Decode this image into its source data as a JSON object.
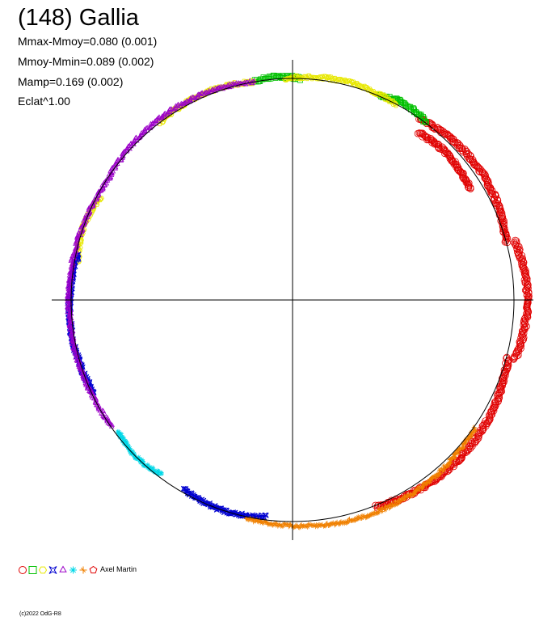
{
  "title": "(148) Gallia",
  "stats": [
    "Mmax-Mmoy=0.080 (0.001)",
    "Mmoy-Mmin=0.089 (0.002)",
    "Mamp=0.169 (0.002)",
    "Eclat^1.00"
  ],
  "observer": "Axel Martin",
  "copyright": "(c)2022 OdG-R8",
  "chart_data": {
    "type": "scatter",
    "projection": "polar lightcurve, radius = brightness ^ 1.00",
    "reference_circle": true,
    "axes_crosshair": true,
    "series": [
      {
        "marker": "circle",
        "color": "#e00000",
        "arcs": [
          [
            292,
            345,
            [
              0.975,
              1.04
            ]
          ],
          [
            345,
            375,
            [
              1.02,
              1.06
            ]
          ],
          [
            375,
            415,
            [
              0.97,
              1.03
            ]
          ],
          [
            32,
            53,
            [
              0.93,
              0.96
            ]
          ]
        ]
      },
      {
        "marker": "square",
        "color": "#00c000",
        "arcs": [
          [
            53,
            67,
            [
              0.985,
              1.02
            ]
          ],
          [
            88,
            100,
            [
              0.99,
              1.01
            ]
          ]
        ]
      },
      {
        "marker": "hexagon",
        "color": "#e8e800",
        "arcs": [
          [
            62,
            92,
            [
              0.985,
              1.015
            ]
          ],
          [
            100,
            127,
            [
              0.985,
              1.015
            ]
          ],
          [
            152,
            170,
            [
              0.97,
              1.0
            ]
          ]
        ]
      },
      {
        "marker": "star",
        "color": "#0000d0",
        "arcs": [
          [
            168,
            205,
            [
              0.97,
              1.01
            ]
          ],
          [
            240,
            263,
            [
              0.97,
              1.0
            ]
          ]
        ]
      },
      {
        "marker": "triangle",
        "color": "#9b00c8",
        "arcs": [
          [
            100,
            145,
            [
              0.985,
              1.015
            ]
          ],
          [
            145,
            215,
            [
              0.98,
              1.01
            ]
          ]
        ]
      },
      {
        "marker": "asterisk",
        "color": "#00d8e8",
        "arcs": [
          [
            217,
            233,
            [
              0.97,
              1.0
            ]
          ]
        ]
      },
      {
        "marker": "plus",
        "color": "#f08000",
        "arcs": [
          [
            258,
            325,
            [
              0.985,
              1.03
            ]
          ]
        ]
      },
      {
        "marker": "pentagon",
        "color": "#e00000",
        "arcs": []
      }
    ],
    "legend": {
      "placement": "bottom-left"
    }
  }
}
